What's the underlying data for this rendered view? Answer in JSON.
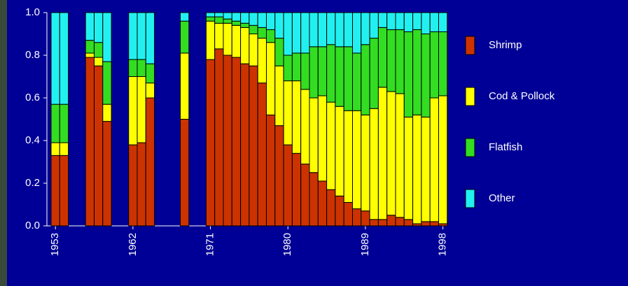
{
  "chart_data": {
    "type": "stacked-bar",
    "categories": [
      "1953",
      null,
      null,
      null,
      null,
      null,
      null,
      null,
      null,
      "1962",
      null,
      null,
      null,
      null,
      null,
      null,
      null,
      null,
      "1971",
      null,
      null,
      null,
      null,
      null,
      null,
      null,
      null,
      "1980",
      null,
      null,
      null,
      null,
      null,
      null,
      null,
      null,
      "1989",
      null,
      null,
      null,
      null,
      null,
      null,
      null,
      null,
      "1998"
    ],
    "series": [
      {
        "name": "Shrimp",
        "color": "#cc3300",
        "values": [
          0.33,
          0.33,
          null,
          null,
          0.79,
          0.75,
          0.49,
          null,
          null,
          0.38,
          0.39,
          0.6,
          null,
          null,
          null,
          0.5,
          null,
          null,
          0.78,
          0.83,
          0.8,
          0.79,
          0.76,
          0.75,
          0.67,
          0.52,
          0.47,
          0.38,
          0.34,
          0.29,
          0.25,
          0.21,
          0.17,
          0.14,
          0.11,
          0.08,
          0.07,
          0.03,
          0.03,
          0.05,
          0.04,
          0.03,
          0.01,
          0.02,
          0.02,
          0.01
        ]
      },
      {
        "name": "Cod & Pollock",
        "color": "#ffff00",
        "values": [
          0.06,
          0.06,
          null,
          null,
          0.02,
          0.04,
          0.08,
          null,
          null,
          0.32,
          0.31,
          0.07,
          null,
          null,
          null,
          0.31,
          null,
          null,
          0.18,
          0.12,
          0.15,
          0.15,
          0.17,
          0.15,
          0.21,
          0.34,
          0.28,
          0.3,
          0.34,
          0.35,
          0.35,
          0.4,
          0.41,
          0.42,
          0.43,
          0.46,
          0.45,
          0.52,
          0.62,
          0.58,
          0.58,
          0.48,
          0.51,
          0.49,
          0.58,
          0.6
        ]
      },
      {
        "name": "Flatfish",
        "color": "#33dd22",
        "values": [
          0.18,
          0.18,
          null,
          null,
          0.06,
          0.07,
          0.2,
          null,
          null,
          0.08,
          0.08,
          0.09,
          null,
          null,
          null,
          0.15,
          null,
          null,
          0.02,
          0.03,
          0.02,
          0.02,
          0.02,
          0.04,
          0.05,
          0.06,
          0.13,
          0.12,
          0.13,
          0.17,
          0.24,
          0.23,
          0.27,
          0.28,
          0.3,
          0.27,
          0.33,
          0.33,
          0.28,
          0.29,
          0.3,
          0.4,
          0.4,
          0.39,
          0.31,
          0.3
        ]
      },
      {
        "name": "Other",
        "color": "#22f0f0",
        "values": [
          0.43,
          0.43,
          null,
          null,
          0.13,
          0.14,
          0.23,
          null,
          null,
          0.22,
          0.22,
          0.24,
          null,
          null,
          null,
          0.04,
          null,
          null,
          0.02,
          0.02,
          0.03,
          0.04,
          0.05,
          0.06,
          0.07,
          0.08,
          0.12,
          0.2,
          0.19,
          0.19,
          0.16,
          0.16,
          0.15,
          0.16,
          0.16,
          0.19,
          0.15,
          0.12,
          0.07,
          0.08,
          0.08,
          0.09,
          0.08,
          0.1,
          0.09,
          0.09
        ]
      }
    ],
    "ylim": [
      0,
      1
    ],
    "yticks": [
      {
        "value": 0,
        "label": "0.0"
      },
      0.2,
      0.4,
      0.6,
      0.8,
      {
        "value": 1,
        "label": "1.0"
      }
    ]
  }
}
